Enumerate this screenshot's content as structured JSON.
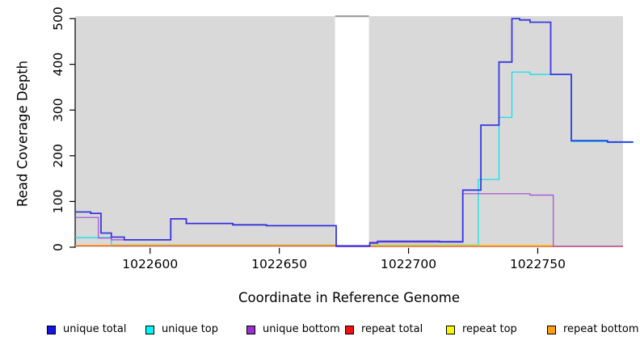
{
  "chart_data": {
    "type": "line",
    "title": "",
    "xlabel": "Coordinate in Reference Genome",
    "ylabel": "Read Coverage Depth",
    "xlim": [
      1022571,
      1022783
    ],
    "ylim": [
      0,
      500
    ],
    "x_ticks": [
      1022600,
      1022650,
      1022700,
      1022750
    ],
    "y_ticks": [
      0,
      100,
      200,
      300,
      400,
      500
    ],
    "grid": false,
    "legend_position": "bottom",
    "background_regions": [
      {
        "name": "covered-region-1",
        "x0": 1022571.0,
        "x1": 1022671.6,
        "color": "#d9d9d9",
        "top_edge": false
      },
      {
        "name": "coverage-gap",
        "x0": 1022671.6,
        "x1": 1022684.7,
        "color": "#ffffff",
        "top_edge": true
      },
      {
        "name": "covered-region-2",
        "x0": 1022684.7,
        "x1": 1022783.0,
        "color": "#d9d9d9",
        "top_edge": false
      }
    ],
    "series": [
      {
        "name": "repeat total",
        "color": "#e62222",
        "width": 1.2,
        "opacity": 1,
        "points": [
          [
            1022571,
            3
          ],
          [
            1022672,
            1
          ],
          [
            1022685,
            2
          ],
          [
            1022783,
            2
          ]
        ]
      },
      {
        "name": "unique top",
        "color": "#00e3ec",
        "width": 1.2,
        "opacity": 1,
        "points": [
          [
            1022571,
            21
          ],
          [
            1022585,
            5
          ],
          [
            1022672,
            1
          ],
          [
            1022685,
            5
          ],
          [
            1022727,
            148
          ],
          [
            1022735,
            284
          ],
          [
            1022740,
            383
          ],
          [
            1022747,
            378
          ],
          [
            1022763,
            231
          ],
          [
            1022777,
            229
          ],
          [
            1022787,
            229
          ]
        ]
      },
      {
        "name": "repeat top",
        "color": "#e8e812",
        "width": 1.2,
        "opacity": 0.65,
        "points": [
          [
            1022571,
            4
          ],
          [
            1022585,
            5
          ],
          [
            1022672,
            1
          ],
          [
            1022685,
            5
          ],
          [
            1022756,
            2
          ],
          [
            1022783,
            2
          ]
        ]
      },
      {
        "name": "repeat bottom",
        "color": "#ff9d14",
        "width": 1.2,
        "opacity": 1,
        "points": [
          [
            1022571,
            4
          ],
          [
            1022672,
            1
          ],
          [
            1022685,
            3
          ],
          [
            1022756,
            1
          ],
          [
            1022783,
            1
          ]
        ]
      },
      {
        "name": "unique bottom",
        "color": "#a249da",
        "width": 1.2,
        "opacity": 1,
        "points": [
          [
            1022571,
            65
          ],
          [
            1022580,
            20
          ],
          [
            1022585,
            16
          ],
          [
            1022608,
            62
          ],
          [
            1022614,
            52
          ],
          [
            1022632,
            49
          ],
          [
            1022645,
            47
          ],
          [
            1022672,
            1
          ],
          [
            1022685,
            11
          ],
          [
            1022721,
            117
          ],
          [
            1022747,
            114
          ],
          [
            1022756,
            2
          ],
          [
            1022783,
            2
          ]
        ]
      },
      {
        "name": "unique total",
        "color": "#2b2be0",
        "width": 1.8,
        "opacity": 0.92,
        "points": [
          [
            1022571,
            77
          ],
          [
            1022577,
            74
          ],
          [
            1022581,
            31
          ],
          [
            1022585,
            22
          ],
          [
            1022590,
            16
          ],
          [
            1022608,
            62
          ],
          [
            1022614,
            52
          ],
          [
            1022632,
            49
          ],
          [
            1022645,
            47
          ],
          [
            1022672,
            3
          ],
          [
            1022685,
            9
          ],
          [
            1022688,
            13
          ],
          [
            1022712,
            12
          ],
          [
            1022721,
            125
          ],
          [
            1022728,
            267
          ],
          [
            1022735,
            405
          ],
          [
            1022740,
            500
          ],
          [
            1022743,
            497
          ],
          [
            1022747,
            492
          ],
          [
            1022755,
            378
          ],
          [
            1022763,
            233
          ],
          [
            1022777,
            230
          ],
          [
            1022787,
            230
          ]
        ]
      }
    ]
  },
  "legend": {
    "items": [
      {
        "label": "unique total",
        "color": "#1414e6"
      },
      {
        "label": "unique top",
        "color": "#00f5f5"
      },
      {
        "label": "unique bottom",
        "color": "#9a2fd2"
      },
      {
        "label": "repeat total",
        "color": "#ee1111"
      },
      {
        "label": "repeat top",
        "color": "#f7f700"
      },
      {
        "label": "repeat bottom",
        "color": "#ff9d14"
      }
    ]
  }
}
